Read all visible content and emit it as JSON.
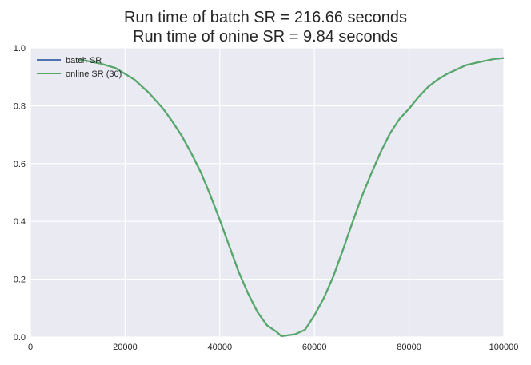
{
  "chart_data": {
    "type": "line",
    "title": "Run time of batch SR = 216.66 seconds",
    "subtitle": "Run time of onine SR = 9.84 seconds",
    "xlabel": "",
    "ylabel": "",
    "xlim": [
      0,
      100000
    ],
    "ylim": [
      0.0,
      1.0
    ],
    "x_ticks": [
      "0",
      "20000",
      "40000",
      "60000",
      "80000",
      "100000"
    ],
    "y_ticks": [
      "0.0",
      "0.2",
      "0.4",
      "0.6",
      "0.8",
      "1.0"
    ],
    "grid": true,
    "legend_position": "top-left",
    "series": [
      {
        "name": "batch SR",
        "color": "#4c72b0",
        "x": [
          10000,
          12000,
          15000,
          18000,
          20000,
          22000,
          25000,
          28000,
          30000,
          32000,
          34000,
          36000,
          38000,
          40000,
          42000,
          44000,
          46000,
          48000,
          50000,
          52000,
          53000,
          54000,
          56000,
          58000,
          60000,
          62000,
          64000,
          66000,
          68000,
          70000,
          72000,
          74000,
          76000,
          78000,
          80000,
          82000,
          84000,
          86000,
          88000,
          90000,
          92000,
          94000,
          96000,
          98000,
          100000
        ],
        "values": [
          0.96,
          0.955,
          0.945,
          0.93,
          0.91,
          0.89,
          0.845,
          0.79,
          0.745,
          0.695,
          0.635,
          0.57,
          0.49,
          0.405,
          0.315,
          0.225,
          0.15,
          0.085,
          0.04,
          0.018,
          0.003,
          0.005,
          0.01,
          0.025,
          0.075,
          0.135,
          0.21,
          0.3,
          0.395,
          0.485,
          0.565,
          0.64,
          0.705,
          0.755,
          0.79,
          0.83,
          0.865,
          0.89,
          0.91,
          0.925,
          0.94,
          0.948,
          0.955,
          0.962,
          0.965
        ]
      },
      {
        "name": "online SR (30)",
        "color": "#55a868",
        "x": [
          10000,
          12000,
          15000,
          18000,
          20000,
          22000,
          25000,
          28000,
          30000,
          32000,
          34000,
          36000,
          38000,
          40000,
          42000,
          44000,
          46000,
          48000,
          50000,
          52000,
          53000,
          54000,
          56000,
          58000,
          60000,
          62000,
          64000,
          66000,
          68000,
          70000,
          72000,
          74000,
          76000,
          78000,
          80000,
          82000,
          84000,
          86000,
          88000,
          90000,
          92000,
          94000,
          96000,
          98000,
          100000
        ],
        "values": [
          0.96,
          0.955,
          0.945,
          0.93,
          0.91,
          0.89,
          0.845,
          0.79,
          0.745,
          0.695,
          0.635,
          0.57,
          0.49,
          0.405,
          0.315,
          0.225,
          0.15,
          0.085,
          0.04,
          0.018,
          0.003,
          0.005,
          0.01,
          0.025,
          0.075,
          0.135,
          0.21,
          0.3,
          0.395,
          0.485,
          0.565,
          0.64,
          0.705,
          0.755,
          0.79,
          0.83,
          0.865,
          0.89,
          0.91,
          0.925,
          0.94,
          0.948,
          0.955,
          0.962,
          0.965
        ]
      }
    ],
    "colors": {
      "background": "#eaeaf2",
      "grid": "#ffffff"
    }
  }
}
